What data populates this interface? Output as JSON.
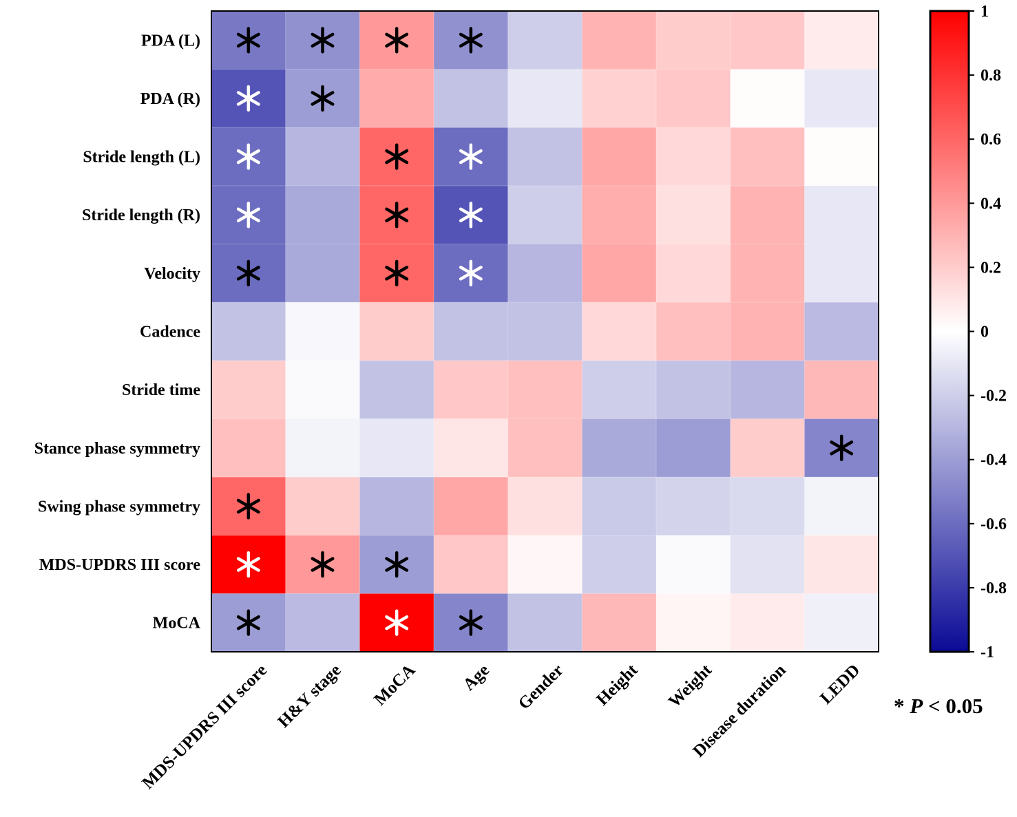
{
  "chart_data": {
    "type": "heatmap",
    "title": "",
    "rows": [
      "PDA (L)",
      "PDA (R)",
      "Stride length (L)",
      "Stride length (R)",
      "Velocity",
      "Cadence",
      "Stride time",
      "Stance phase symmetry",
      "Swing phase symmetry",
      "MDS-UPDRS III score",
      "MoCA"
    ],
    "columns": [
      "MDS-UPDRS III score",
      "H&Y stage",
      "MoCA",
      "Age",
      "Gender",
      "Height",
      "Weight",
      "Disease duration",
      "LEDD"
    ],
    "values": [
      [
        -0.55,
        -0.45,
        0.4,
        -0.45,
        -0.2,
        0.3,
        0.2,
        0.22,
        0.08
      ],
      [
        -0.7,
        -0.4,
        0.33,
        -0.25,
        -0.1,
        0.18,
        0.22,
        0.01,
        -0.1
      ],
      [
        -0.6,
        -0.3,
        0.6,
        -0.6,
        -0.25,
        0.35,
        0.15,
        0.25,
        0.01
      ],
      [
        -0.6,
        -0.35,
        0.6,
        -0.7,
        -0.2,
        0.32,
        0.12,
        0.3,
        -0.1
      ],
      [
        -0.6,
        -0.35,
        0.6,
        -0.6,
        -0.3,
        0.35,
        0.15,
        0.3,
        -0.1
      ],
      [
        -0.25,
        -0.03,
        0.2,
        -0.25,
        -0.25,
        0.15,
        0.25,
        0.3,
        -0.28
      ],
      [
        0.2,
        -0.02,
        -0.25,
        0.22,
        0.25,
        -0.2,
        -0.25,
        -0.3,
        0.28
      ],
      [
        0.25,
        -0.05,
        -0.1,
        0.1,
        0.25,
        -0.35,
        -0.4,
        0.2,
        -0.5
      ],
      [
        0.6,
        0.2,
        -0.3,
        0.35,
        0.12,
        -0.22,
        -0.18,
        -0.15,
        -0.05
      ],
      [
        1.0,
        0.4,
        -0.4,
        0.22,
        0.03,
        -0.2,
        -0.02,
        -0.12,
        0.1
      ],
      [
        -0.4,
        -0.28,
        1.0,
        -0.5,
        -0.25,
        0.28,
        0.04,
        0.08,
        -0.06
      ]
    ],
    "significant": [
      [
        1,
        1,
        1,
        1,
        0,
        0,
        0,
        0,
        0
      ],
      [
        1,
        1,
        0,
        0,
        0,
        0,
        0,
        0,
        0
      ],
      [
        1,
        0,
        1,
        1,
        0,
        0,
        0,
        0,
        0
      ],
      [
        1,
        0,
        1,
        1,
        0,
        0,
        0,
        0,
        0
      ],
      [
        1,
        0,
        1,
        1,
        0,
        0,
        0,
        0,
        0
      ],
      [
        0,
        0,
        0,
        0,
        0,
        0,
        0,
        0,
        0
      ],
      [
        0,
        0,
        0,
        0,
        0,
        0,
        0,
        0,
        0
      ],
      [
        0,
        0,
        0,
        0,
        0,
        0,
        0,
        0,
        1
      ],
      [
        1,
        0,
        0,
        0,
        0,
        0,
        0,
        0,
        0
      ],
      [
        1,
        1,
        1,
        0,
        0,
        0,
        0,
        0,
        0
      ],
      [
        1,
        0,
        1,
        1,
        0,
        0,
        0,
        0,
        0
      ]
    ],
    "marker_colors": [
      [
        "#000",
        "#000",
        "#000",
        "#000",
        "",
        "",
        "",
        "",
        ""
      ],
      [
        "#fff",
        "#000",
        "",
        "",
        "",
        "",
        "",
        "",
        ""
      ],
      [
        "#fff",
        "",
        "#000",
        "#fff",
        "",
        "",
        "",
        "",
        ""
      ],
      [
        "#fff",
        "",
        "#000",
        "#fff",
        "",
        "",
        "",
        "",
        ""
      ],
      [
        "#000",
        "",
        "#000",
        "#fff",
        "",
        "",
        "",
        "",
        ""
      ],
      [
        "",
        "",
        "",
        "",
        "",
        "",
        "",
        "",
        ""
      ],
      [
        "",
        "",
        "",
        "",
        "",
        "",
        "",
        "",
        ""
      ],
      [
        "",
        "",
        "",
        "",
        "",
        "",
        "",
        "",
        "#000"
      ],
      [
        "#000",
        "",
        "",
        "",
        "",
        "",
        "",
        "",
        ""
      ],
      [
        "#fff",
        "#000",
        "#000",
        "",
        "",
        "",
        "",
        "",
        ""
      ],
      [
        "#000",
        "",
        "#fff",
        "#000",
        "",
        "",
        "",
        "",
        ""
      ]
    ],
    "colorbar": {
      "range": [
        -1,
        1
      ],
      "ticks": [
        "1",
        "0.8",
        "0.6",
        "0.4",
        "0.2",
        "0",
        "-0.2",
        "-0.4",
        "-0.6",
        "-0.8",
        "-1"
      ],
      "tick_values": [
        1,
        0.8,
        0.6,
        0.4,
        0.2,
        0,
        -0.2,
        -0.4,
        -0.6,
        -0.8,
        -1
      ],
      "low_color": "#0a0a96",
      "mid_color": "#ffffff",
      "high_color": "#ff0000"
    },
    "annotation": {
      "star": "*",
      "p_label": "P",
      "rest": " < 0.05"
    }
  }
}
